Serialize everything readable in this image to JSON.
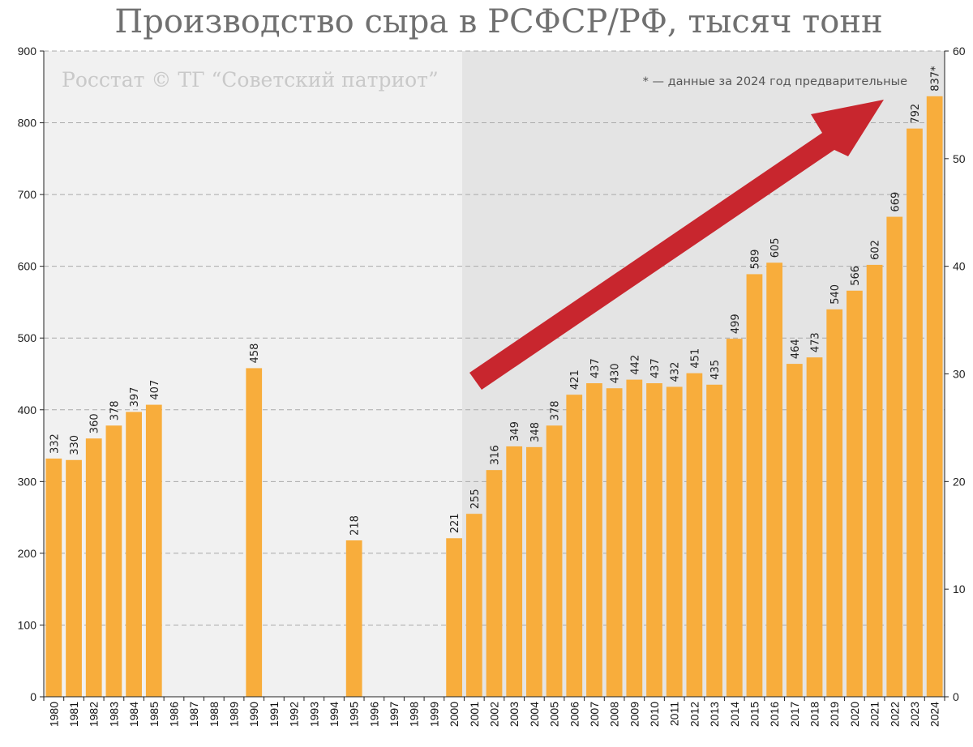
{
  "chart_data": {
    "type": "bar",
    "title": "Производство сыра в РСФСР/РФ, тысяч тонн",
    "watermark": "Росстат © ТГ “Советский патриот”",
    "note": "* — данные за 2024 год предварительные",
    "categories": [
      "1980",
      "1981",
      "1982",
      "1983",
      "1984",
      "1985",
      "1986",
      "1987",
      "1988",
      "1989",
      "1990",
      "1991",
      "1992",
      "1993",
      "1994",
      "1995",
      "1996",
      "1997",
      "1998",
      "1999",
      "2000",
      "2001",
      "2002",
      "2003",
      "2004",
      "2005",
      "2006",
      "2007",
      "2008",
      "2009",
      "2010",
      "2011",
      "2012",
      "2013",
      "2014",
      "2015",
      "2016",
      "2017",
      "2018",
      "2019",
      "2020",
      "2021",
      "2022",
      "2023",
      "2024"
    ],
    "values": [
      332,
      330,
      360,
      378,
      397,
      407,
      null,
      null,
      null,
      null,
      458,
      null,
      null,
      null,
      null,
      218,
      null,
      null,
      null,
      null,
      221,
      255,
      316,
      349,
      348,
      378,
      421,
      437,
      430,
      442,
      437,
      432,
      451,
      435,
      499,
      589,
      605,
      464,
      473,
      540,
      566,
      602,
      669,
      792,
      837
    ],
    "data_labels": [
      "332",
      "330",
      "360",
      "378",
      "397",
      "407",
      "",
      "",
      "",
      "",
      "458",
      "",
      "",
      "",
      "",
      "218",
      "",
      "",
      "",
      "",
      "221",
      "255",
      "316",
      "349",
      "348",
      "378",
      "421",
      "437",
      "430",
      "442",
      "437",
      "432",
      "451",
      "435",
      "499",
      "589",
      "605",
      "464",
      "473",
      "540",
      "566",
      "602",
      "669",
      "792",
      "837*"
    ],
    "ylim": [
      0,
      900
    ],
    "yticks": [
      0,
      100,
      200,
      300,
      400,
      500,
      600,
      700,
      800,
      900
    ],
    "y2lim": [
      0,
      60
    ],
    "y2ticks": [
      0,
      10,
      20,
      30,
      40,
      50,
      60
    ],
    "grid": "horizontal dashed",
    "colors": {
      "bar": "#f8ad3c",
      "arrow": "#c8262e",
      "panel_left": "#f1f1f1",
      "panel_right": "#e4e4e4",
      "grid": "#aaaaaa"
    }
  }
}
